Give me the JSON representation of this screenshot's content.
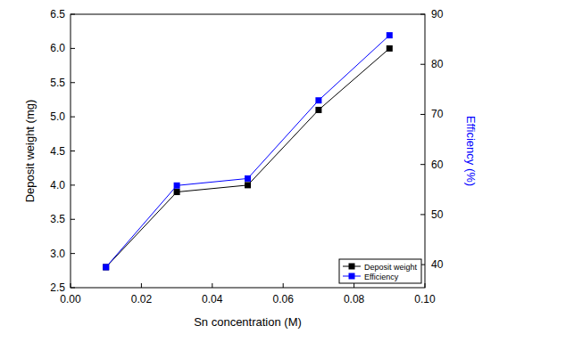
{
  "chart_data": {
    "type": "line",
    "x_label": "Sn concentration (M)",
    "y_label": "Deposit weight (mg)",
    "y2_label": "Efficiency (%)",
    "x": [
      0.01,
      0.03,
      0.05,
      0.07,
      0.09
    ],
    "xlim": [
      0,
      0.1
    ],
    "xticks": [
      {
        "value": 0,
        "label": "0.00"
      },
      {
        "value": 0.02,
        "label": "0.02"
      },
      {
        "value": 0.04,
        "label": "0.04"
      },
      {
        "value": 0.06,
        "label": "0.06"
      },
      {
        "value": 0.08,
        "label": "0.08"
      },
      {
        "value": 0.1,
        "label": "0.10"
      }
    ],
    "ylim": [
      2.5,
      6.5
    ],
    "yticks": [
      2.5,
      {
        "value": 3,
        "label": "3.0"
      },
      3.5,
      {
        "value": 4,
        "label": "4.0"
      },
      4.5,
      {
        "value": 5,
        "label": "5.0"
      },
      5.5,
      {
        "value": 6,
        "label": "6.0"
      },
      6.5
    ],
    "y2lim": [
      35.4,
      90
    ],
    "y2ticks": [
      40,
      50,
      60,
      70,
      80,
      90
    ],
    "grid": false,
    "legend": "lower right",
    "series": [
      {
        "name": "Deposit weight",
        "color": "#000000",
        "marker": "square",
        "values": [
          2.8,
          3.9,
          4.0,
          5.1,
          6.0
        ]
      },
      {
        "name": "Efficiency",
        "color": "#0000ff",
        "marker": "square",
        "axis": "y2",
        "values": [
          39.5,
          55.8,
          57.2,
          72.8,
          85.8
        ]
      }
    ]
  }
}
